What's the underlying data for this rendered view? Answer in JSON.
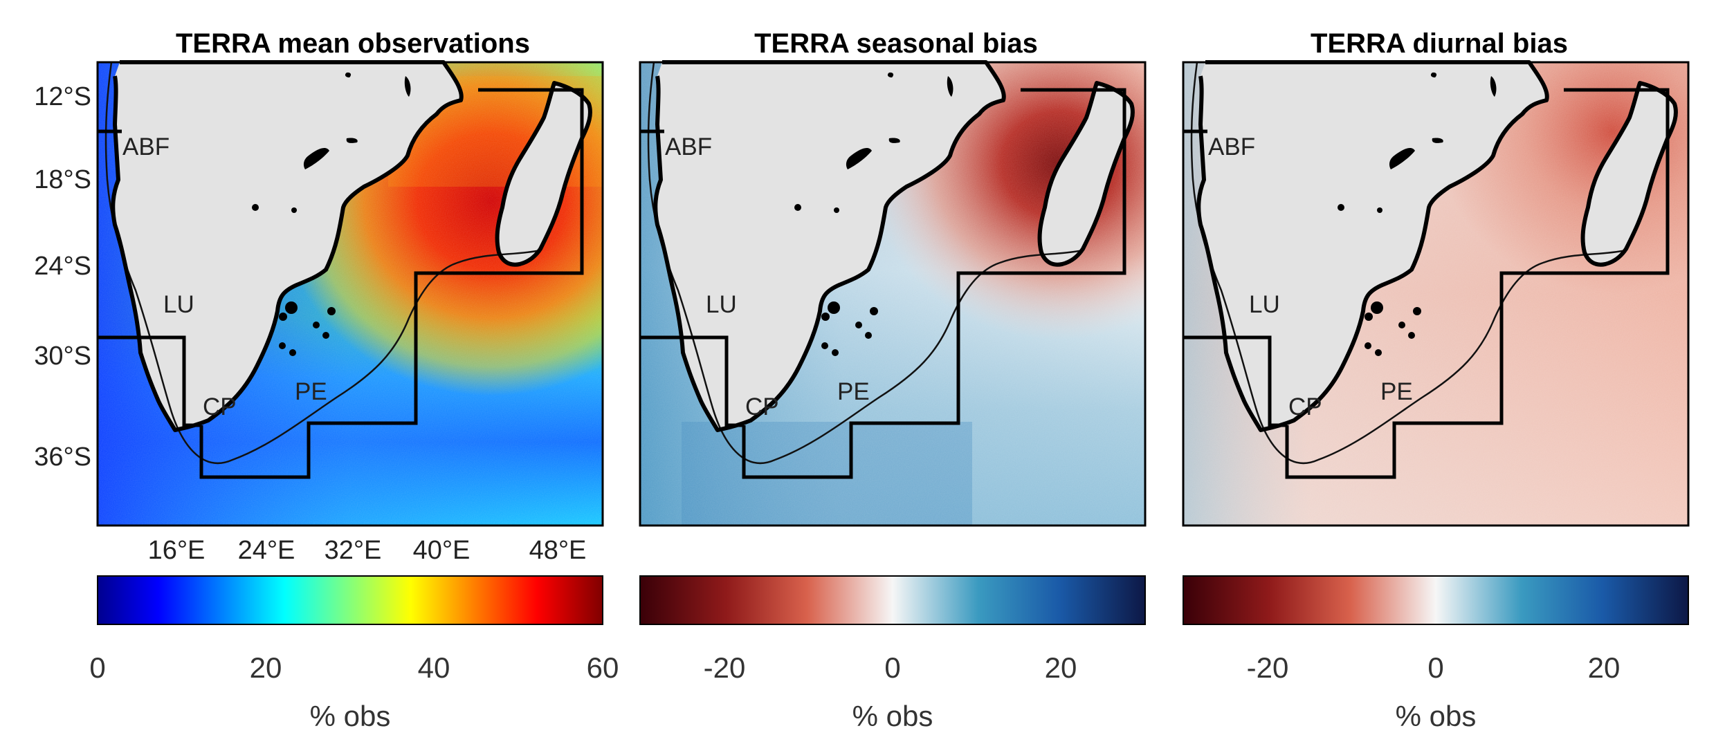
{
  "figure": {
    "region_labels": [
      "ABF",
      "LU",
      "CP",
      "PE"
    ],
    "lat_ticks": [
      "12°S",
      "18°S",
      "24°S",
      "30°S",
      "36°S"
    ],
    "lon_ticks": [
      "16°E",
      "24°E",
      "32°E",
      "40°E",
      "48°E"
    ]
  },
  "panels": [
    {
      "title": "TERRA mean observations",
      "colorbar": {
        "colormap": "jet",
        "range": [
          0,
          60
        ],
        "ticks": [
          "0",
          "20",
          "40",
          "60"
        ],
        "label": "% obs",
        "stops": [
          "#00008f",
          "#0000ff",
          "#00ffff",
          "#ffff00",
          "#ff0000",
          "#800000"
        ]
      }
    },
    {
      "title": "TERRA seasonal bias",
      "colorbar": {
        "colormap": "red-white-blue",
        "range": [
          -30,
          30
        ],
        "ticks": [
          "-20",
          "0",
          "20"
        ],
        "label": "% obs",
        "stops": [
          "#3a0008",
          "#8f1a1a",
          "#d8614c",
          "#f6f6f6",
          "#3a9ac0",
          "#1a5aa8",
          "#0d1846"
        ]
      }
    },
    {
      "title": "TERRA diurnal bias",
      "colorbar": {
        "colormap": "red-white-blue",
        "range": [
          -30,
          30
        ],
        "ticks": [
          "-20",
          "0",
          "20"
        ],
        "label": "% obs",
        "stops": [
          "#3a0008",
          "#8f1a1a",
          "#d8614c",
          "#f6f6f6",
          "#3a9ac0",
          "#1a5aa8",
          "#0d1846"
        ]
      }
    }
  ],
  "colors": {
    "land": "#e3e3e3",
    "outline": "#000000",
    "jet_cold": "#0a3cff",
    "jet_mid": "#3df0d0",
    "jet_hot": "#e01808",
    "seasonal_blue": "#5fa8cf",
    "seasonal_red": "#d05a4a",
    "diurnal_red": "#e89a86"
  }
}
